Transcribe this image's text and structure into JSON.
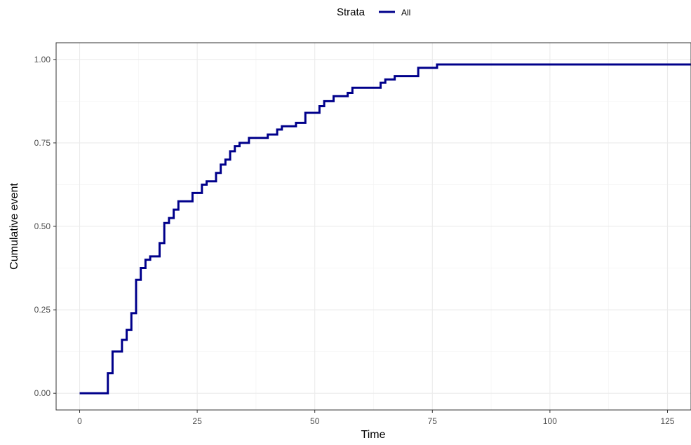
{
  "chart_data": {
    "type": "line",
    "step": true,
    "xlabel": "Time",
    "ylabel": "Cumulative event",
    "xlim": [
      -5,
      130
    ],
    "ylim": [
      -0.05,
      1.05
    ],
    "x_ticks": [
      0,
      25,
      50,
      75,
      100,
      125
    ],
    "x_tick_labels": [
      "0",
      "25",
      "50",
      "75",
      "100",
      "125"
    ],
    "y_ticks": [
      0,
      0.25,
      0.5,
      0.75,
      1
    ],
    "y_tick_labels": [
      "0.00",
      "0.25",
      "0.50",
      "0.75",
      "1.00"
    ],
    "grid": true,
    "legend": {
      "title": "Strata",
      "placement": "top",
      "entries": [
        "All"
      ]
    },
    "series": [
      {
        "name": "All",
        "color": "#00008B",
        "x": [
          0,
          6,
          7,
          9,
          10,
          11,
          12,
          13,
          14,
          15,
          17,
          18,
          19,
          20,
          21,
          24,
          26,
          27,
          29,
          30,
          31,
          32,
          33,
          34,
          36,
          40,
          42,
          43,
          46,
          48,
          51,
          52,
          54,
          57,
          58,
          64,
          65,
          67,
          72,
          76,
          130
        ],
        "y": [
          0,
          0.06,
          0.125,
          0.16,
          0.19,
          0.24,
          0.34,
          0.375,
          0.4,
          0.41,
          0.45,
          0.51,
          0.525,
          0.55,
          0.575,
          0.6,
          0.625,
          0.635,
          0.66,
          0.685,
          0.7,
          0.725,
          0.74,
          0.75,
          0.765,
          0.775,
          0.79,
          0.8,
          0.81,
          0.84,
          0.86,
          0.875,
          0.89,
          0.9,
          0.915,
          0.93,
          0.94,
          0.95,
          0.975,
          0.985,
          0.985
        ]
      }
    ]
  }
}
